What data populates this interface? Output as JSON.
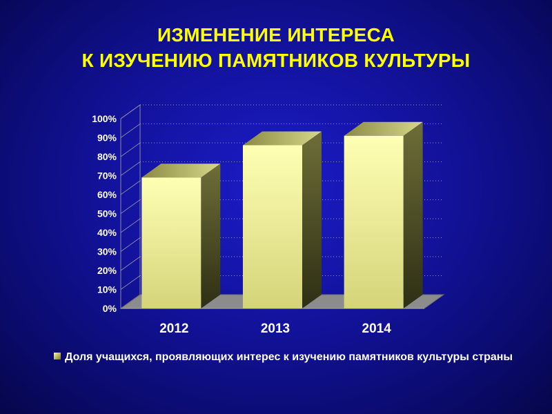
{
  "title": {
    "line1": "ИЗМЕНЕНИЕ ИНТЕРЕСА",
    "line2": "К ИЗУЧЕНИЮ ПАМЯТНИКОВ КУЛЬТУРЫ"
  },
  "colors": {
    "title": "#ffff00",
    "bar_front_top": "#ffffb0",
    "bar_front_bottom": "#d6d67a",
    "bar_side": "#5c5c2e",
    "bar_top": "#c8c870",
    "floor": "#8c8c8c"
  },
  "chart_data": {
    "type": "bar",
    "categories": [
      "2012",
      "2013",
      "2014"
    ],
    "series": [
      {
        "name": "Доля учащихся, проявляющих интерес к изучению памятников культуры страны",
        "values": [
          69,
          86,
          91
        ]
      }
    ],
    "yticks": [
      "0%",
      "10%",
      "20%",
      "30%",
      "40%",
      "50%",
      "60%",
      "70%",
      "80%",
      "90%",
      "100%"
    ],
    "ylim": [
      0,
      100
    ],
    "grid": true,
    "legend_position": "bottom"
  }
}
